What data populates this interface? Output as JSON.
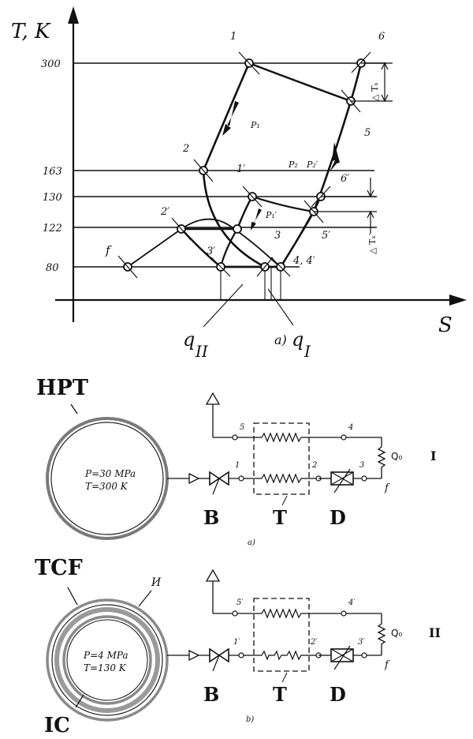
{
  "ts_diagram": {
    "y_axis_label": "T, K",
    "x_axis_label": "S",
    "temperature_ticks": [
      "300",
      "163",
      "130",
      "122",
      "80"
    ],
    "point_labels": {
      "p1": "1",
      "p2": "2",
      "p3": "3",
      "p5": "5",
      "p6": "6",
      "p1s": "1′",
      "p2s": "2′",
      "p3s": "3′",
      "p5s": "5′",
      "p6s": "6′",
      "p44": "4, 4′",
      "f": "f"
    },
    "pressure_labels": {
      "P1": "P₁",
      "P1s": "P₁′",
      "P2": "P₂",
      "P2s": "P₂′"
    },
    "dT_labels": {
      "dT": "△ Tₓ",
      "dTs": "△ Tₓ′"
    },
    "area_labels": {
      "qII": "q",
      "qII_sub": "II",
      "qI_prefix": "a)",
      "qI": "q",
      "qI_sub": "I"
    }
  },
  "scheme_a": {
    "vessel_label": "HPT",
    "vessel_pressure": "P=30 MPa",
    "vessel_temperature": "T=300 K",
    "node_labels": {
      "n1": "1",
      "n2": "2",
      "n3": "3",
      "n4": "4",
      "n5": "5"
    },
    "load_label": "Q₀",
    "stage_label": "I",
    "f_label": "f",
    "component_labels": {
      "valve": "B",
      "exchanger": "T",
      "throttle": "D"
    },
    "caption": "a)"
  },
  "scheme_b": {
    "vessel_label": "TCF",
    "insulation_label": "И",
    "inner_label": "IC",
    "vessel_pressure": "P=4 MPa",
    "vessel_temperature": "T=130 K",
    "node_labels": {
      "n1": "1′",
      "n2": "2′",
      "n3": "3′",
      "n4": "4′",
      "n5": "5′"
    },
    "load_label": "Q₀",
    "stage_label": "II",
    "f_label": "f",
    "component_labels": {
      "valve": "B",
      "exchanger": "T",
      "throttle": "D"
    },
    "caption": "b)"
  }
}
